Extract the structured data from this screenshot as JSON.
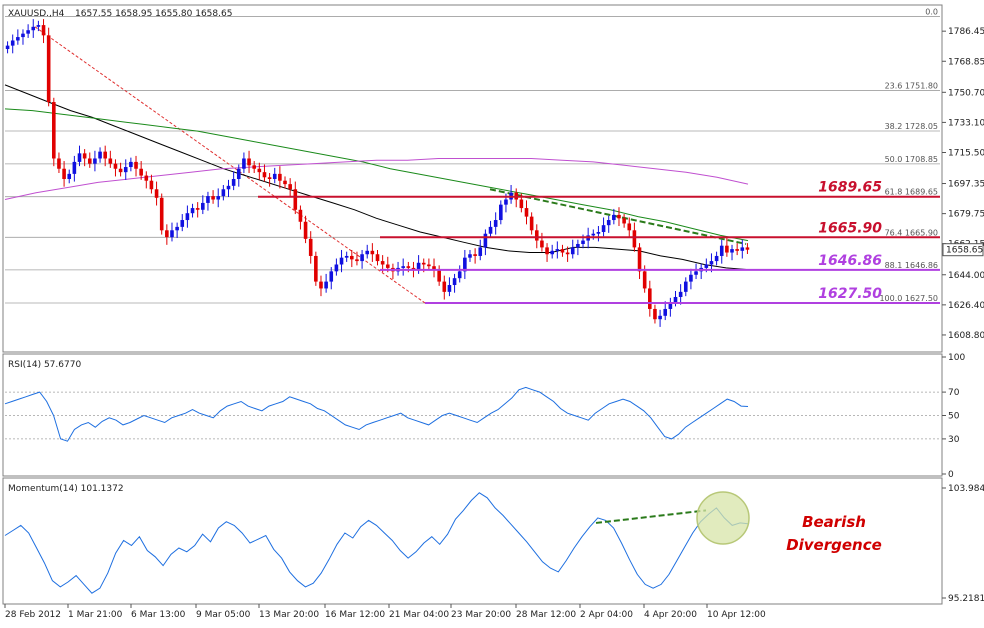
{
  "chart_data": [
    {
      "panel": "price",
      "type": "candlestick",
      "title": "XAUUSD.,H4",
      "ohlc_label": "1657.55 1658.95 1655.80 1658.65",
      "current_price": "1658.65",
      "ylim": [
        1600,
        1800
      ],
      "y_ticks": [
        "1786.45",
        "1768.85",
        "1750.70",
        "1733.10",
        "1715.50",
        "1697.35",
        "1679.75",
        "1662.15",
        "1644.00",
        "1626.40",
        "1608.80"
      ],
      "x_ticks": [
        "28 Feb 2012",
        "1 Mar 21:00",
        "6 Mar 13:00",
        "9 Mar 05:00",
        "13 Mar 20:00",
        "16 Mar 12:00",
        "21 Mar 04:00",
        "23 Mar 20:00",
        "28 Mar 12:00",
        "2 Apr 04:00",
        "4 Apr 20:00",
        "10 Apr 12:00"
      ],
      "fib_levels": [
        {
          "label": "0.0",
          "value": 1795.0
        },
        {
          "label": "23.6 1751.80",
          "value": 1751.8
        },
        {
          "label": "38.2 1728.05",
          "value": 1728.05
        },
        {
          "label": "50.0 1708.85",
          "value": 1708.85
        },
        {
          "label": "61.8 1689.65",
          "value": 1689.65
        },
        {
          "label": "76.4 1665.90",
          "value": 1665.9
        },
        {
          "label": "88.1 1646.86",
          "value": 1646.86
        },
        {
          "label": "100.0 1627.50",
          "value": 1627.5
        }
      ],
      "key_levels": [
        {
          "label": "1689.65",
          "value": 1689.65,
          "color": "#c8102e"
        },
        {
          "label": "1665.90",
          "value": 1665.9,
          "color": "#c8102e"
        },
        {
          "label": "1646.86",
          "value": 1646.86,
          "color": "#b040e0"
        },
        {
          "label": "1627.50",
          "value": 1627.5,
          "color": "#b040e0"
        }
      ],
      "series_colors": {
        "up": "#1010e0",
        "down": "#e00000",
        "ma_fast": "#000000",
        "ma_mid": "#1a8a1a",
        "ma_slow": "#c050d0"
      },
      "closes": [
        1778,
        1781,
        1783,
        1785,
        1787,
        1789,
        1790,
        1784,
        1745,
        1712,
        1706,
        1700,
        1703,
        1710,
        1715,
        1712,
        1709,
        1712,
        1716,
        1712,
        1709,
        1706,
        1704,
        1707,
        1710,
        1706,
        1702,
        1699,
        1694,
        1689,
        1670,
        1666,
        1670,
        1672,
        1676,
        1680,
        1683,
        1682,
        1686,
        1690,
        1688,
        1690,
        1694,
        1696,
        1700,
        1706,
        1712,
        1708,
        1706,
        1704,
        1701,
        1700,
        1703,
        1699,
        1697,
        1694,
        1682,
        1675,
        1665,
        1655,
        1640,
        1636,
        1640,
        1646,
        1650,
        1654,
        1655,
        1653,
        1652,
        1656,
        1658,
        1656,
        1652,
        1650,
        1648,
        1646,
        1648,
        1649,
        1648,
        1647,
        1651,
        1650,
        1649,
        1647,
        1640,
        1634,
        1638,
        1642,
        1646,
        1654,
        1656,
        1655,
        1660,
        1668,
        1672,
        1676,
        1685,
        1688,
        1692,
        1688,
        1683,
        1678,
        1670,
        1664,
        1660,
        1656,
        1658,
        1659,
        1657,
        1656,
        1660,
        1662,
        1664,
        1667,
        1668,
        1669,
        1673,
        1676,
        1679,
        1677,
        1674,
        1670,
        1660,
        1646,
        1636,
        1624,
        1618,
        1620,
        1624,
        1628,
        1631,
        1634,
        1640,
        1644,
        1646,
        1648,
        1650,
        1652,
        1655,
        1661,
        1657,
        1659,
        1658,
        1660,
        1658.65
      ],
      "ma_fast": [
        1755,
        1750,
        1745,
        1740,
        1736,
        1731,
        1726,
        1721,
        1716,
        1711,
        1706,
        1702,
        1698,
        1694,
        1690,
        1686,
        1682,
        1677,
        1673,
        1669,
        1666,
        1663,
        1660,
        1658,
        1657,
        1657,
        1660,
        1660,
        1659,
        1658,
        1655,
        1653,
        1650,
        1648,
        1647
      ],
      "ma_mid": [
        1741,
        1740,
        1738,
        1736,
        1734,
        1732,
        1730,
        1728,
        1725,
        1722,
        1719,
        1716,
        1713,
        1710,
        1706,
        1703,
        1700,
        1697,
        1694,
        1691,
        1688,
        1685,
        1682,
        1678,
        1675,
        1671,
        1667,
        1664
      ],
      "ma_slow": [
        1688,
        1692,
        1695,
        1698,
        1700,
        1702,
        1704,
        1706,
        1707,
        1708,
        1709,
        1710,
        1711,
        1711,
        1712,
        1712,
        1712,
        1712,
        1711,
        1710,
        1708,
        1706,
        1704,
        1701,
        1697
      ]
    },
    {
      "panel": "rsi",
      "type": "line",
      "title": "RSI(14) 57.6770",
      "ylim": [
        0,
        100
      ],
      "y_ticks": [
        "100",
        "70",
        "50",
        "30",
        "0"
      ],
      "levels": [
        70,
        50,
        30
      ],
      "values": [
        60,
        62,
        64,
        66,
        68,
        70,
        62,
        50,
        30,
        28,
        38,
        42,
        44,
        40,
        45,
        48,
        46,
        42,
        44,
        47,
        50,
        48,
        46,
        44,
        48,
        50,
        52,
        55,
        52,
        50,
        48,
        54,
        58,
        60,
        62,
        58,
        56,
        54,
        58,
        60,
        62,
        66,
        64,
        62,
        60,
        56,
        54,
        50,
        46,
        42,
        40,
        38,
        42,
        44,
        46,
        48,
        50,
        52,
        48,
        46,
        44,
        42,
        46,
        50,
        52,
        50,
        48,
        46,
        44,
        48,
        52,
        55,
        60,
        65,
        72,
        74,
        72,
        70,
        66,
        62,
        56,
        52,
        50,
        48,
        46,
        52,
        56,
        60,
        62,
        64,
        62,
        58,
        54,
        48,
        40,
        32,
        30,
        34,
        40,
        44,
        48,
        52,
        56,
        60,
        64,
        62,
        58,
        57.677
      ]
    },
    {
      "panel": "momentum",
      "type": "line",
      "title": "Momentum(14) 101.1372",
      "ylim": [
        95.2181,
        103.9843
      ],
      "y_ticks": [
        "103.9843",
        "95.2181"
      ],
      "values": [
        100.2,
        100.6,
        101.0,
        100.4,
        99.2,
        98.0,
        96.6,
        96.1,
        96.5,
        97.0,
        96.3,
        95.6,
        96.0,
        97.2,
        98.8,
        99.8,
        99.4,
        100.1,
        99.0,
        98.5,
        97.8,
        98.7,
        99.2,
        98.9,
        99.4,
        100.3,
        99.7,
        100.8,
        101.3,
        101.0,
        100.4,
        99.6,
        99.9,
        100.2,
        99.1,
        98.4,
        97.3,
        96.6,
        96.1,
        96.4,
        97.2,
        98.3,
        99.5,
        100.4,
        100.0,
        100.9,
        101.4,
        101.0,
        100.4,
        99.8,
        99.0,
        98.4,
        98.9,
        99.6,
        100.1,
        99.5,
        100.3,
        101.5,
        102.2,
        103.0,
        103.6,
        103.2,
        102.4,
        101.8,
        101.1,
        100.4,
        99.7,
        98.9,
        98.1,
        97.6,
        97.3,
        98.2,
        99.2,
        100.1,
        100.9,
        101.6,
        101.4,
        100.8,
        99.6,
        98.3,
        97.1,
        96.3,
        96.0,
        96.3,
        97.1,
        98.2,
        99.3,
        100.4,
        101.3,
        101.9,
        102.4,
        101.6,
        101.0,
        101.2,
        101.1372
      ],
      "divergence_note": "Bearish Divergence"
    }
  ]
}
